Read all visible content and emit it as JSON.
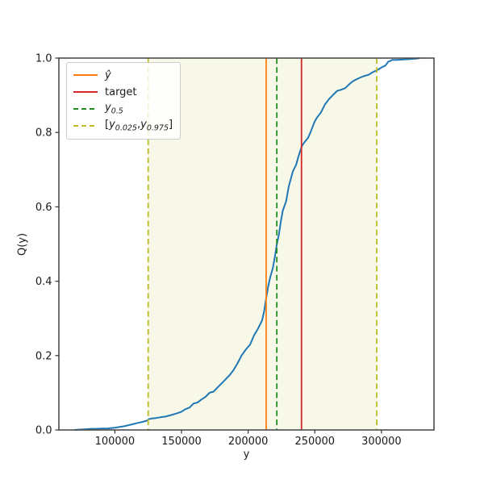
{
  "chart_data": {
    "type": "line",
    "title": "",
    "xlabel": "y",
    "ylabel": "Q(y)",
    "xlim": [
      58000,
      339400
    ],
    "ylim": [
      0,
      1
    ],
    "grid": false,
    "x_ticks": [
      100000,
      150000,
      200000,
      250000,
      300000
    ],
    "y_ticks": [
      {
        "v": 0,
        "label": "0.0"
      },
      {
        "v": 0.2,
        "label": "0.2"
      },
      {
        "v": 0.4,
        "label": "0.4"
      },
      {
        "v": 0.6,
        "label": "0.6"
      },
      {
        "v": 0.8,
        "label": "0.8"
      },
      {
        "v": 1.0,
        "label": "1.0"
      }
    ],
    "colors": {
      "curve": "#1f77b4",
      "yhat": "#ff7f0e",
      "target": "#d62728",
      "median": "#1e8c1e",
      "interval": "#bcbd22",
      "band": "#f8f8e9",
      "spine": "#4d4d4d",
      "text": "#1a1a1a"
    },
    "band": {
      "from": 125000,
      "to": 296500,
      "color": "#f8f8e9"
    },
    "vlines": [
      {
        "name": "yhat-line",
        "value": 213500,
        "color": "#ff7f0e",
        "dash": false
      },
      {
        "name": "target-line",
        "value": 240000,
        "color": "#d62728",
        "dash": false
      },
      {
        "name": "median-line",
        "value": 221500,
        "color": "#1e8c1e",
        "dash": true
      },
      {
        "name": "q025-line",
        "value": 125000,
        "color": "#bcbd22",
        "dash": true
      },
      {
        "name": "q975-line",
        "value": 296500,
        "color": "#bcbd22",
        "dash": true
      }
    ],
    "curve": {
      "name": "empirical-cdf",
      "color": "#1f77b4",
      "points": [
        [
          70000,
          0.0
        ],
        [
          74000,
          0.001
        ],
        [
          78000,
          0.002
        ],
        [
          82000,
          0.003
        ],
        [
          86000,
          0.003
        ],
        [
          90000,
          0.004
        ],
        [
          94000,
          0.004
        ],
        [
          97000,
          0.005
        ],
        [
          100000,
          0.006
        ],
        [
          103500,
          0.008
        ],
        [
          107000,
          0.01
        ],
        [
          110500,
          0.013
        ],
        [
          114000,
          0.016
        ],
        [
          117500,
          0.019
        ],
        [
          121000,
          0.022
        ],
        [
          124000,
          0.025
        ],
        [
          125500,
          0.029
        ],
        [
          128000,
          0.031
        ],
        [
          131000,
          0.032
        ],
        [
          134000,
          0.034
        ],
        [
          138000,
          0.036
        ],
        [
          142000,
          0.04
        ],
        [
          146000,
          0.044
        ],
        [
          150000,
          0.049
        ],
        [
          153000,
          0.056
        ],
        [
          156000,
          0.06
        ],
        [
          159000,
          0.071
        ],
        [
          162000,
          0.074
        ],
        [
          165000,
          0.082
        ],
        [
          168000,
          0.089
        ],
        [
          171000,
          0.1
        ],
        [
          174000,
          0.103
        ],
        [
          177000,
          0.114
        ],
        [
          180000,
          0.125
        ],
        [
          183000,
          0.136
        ],
        [
          186000,
          0.147
        ],
        [
          189000,
          0.161
        ],
        [
          192000,
          0.179
        ],
        [
          195000,
          0.2
        ],
        [
          198000,
          0.215
        ],
        [
          201500,
          0.23
        ],
        [
          204500,
          0.255
        ],
        [
          207500,
          0.273
        ],
        [
          210500,
          0.295
        ],
        [
          212000,
          0.32
        ],
        [
          213500,
          0.355
        ],
        [
          215000,
          0.385
        ],
        [
          216500,
          0.41
        ],
        [
          218500,
          0.435
        ],
        [
          220000,
          0.465
        ],
        [
          221500,
          0.5
        ],
        [
          223000,
          0.525
        ],
        [
          224500,
          0.56
        ],
        [
          226000,
          0.59
        ],
        [
          228500,
          0.615
        ],
        [
          230500,
          0.655
        ],
        [
          232000,
          0.675
        ],
        [
          233500,
          0.695
        ],
        [
          236000,
          0.713
        ],
        [
          237700,
          0.735
        ],
        [
          239000,
          0.75
        ],
        [
          240500,
          0.765
        ],
        [
          242500,
          0.775
        ],
        [
          245000,
          0.786
        ],
        [
          246700,
          0.8
        ],
        [
          249700,
          0.828
        ],
        [
          251600,
          0.84
        ],
        [
          254600,
          0.854
        ],
        [
          257700,
          0.876
        ],
        [
          260700,
          0.89
        ],
        [
          263700,
          0.901
        ],
        [
          266800,
          0.912
        ],
        [
          269800,
          0.915
        ],
        [
          272800,
          0.919
        ],
        [
          275900,
          0.93
        ],
        [
          278300,
          0.937
        ],
        [
          281300,
          0.943
        ],
        [
          284300,
          0.948
        ],
        [
          287300,
          0.952
        ],
        [
          290400,
          0.955
        ],
        [
          293400,
          0.962
        ],
        [
          297000,
          0.968
        ],
        [
          300100,
          0.975
        ],
        [
          303000,
          0.98
        ],
        [
          305000,
          0.99
        ],
        [
          307000,
          0.993
        ],
        [
          308000,
          0.995
        ],
        [
          312000,
          0.995
        ],
        [
          316000,
          0.996
        ],
        [
          320000,
          0.997
        ],
        [
          324000,
          0.998
        ],
        [
          327000,
          0.999
        ],
        [
          328500,
          1.0
        ]
      ]
    },
    "legend": {
      "position": "upper-left",
      "items": [
        {
          "color": "#ff7f0e",
          "dash": false,
          "label": [
            {
              "t": "ŷ",
              "i": true
            }
          ]
        },
        {
          "color": "#d62728",
          "dash": false,
          "label": [
            {
              "t": "target",
              "i": false
            }
          ]
        },
        {
          "color": "#1e8c1e",
          "dash": true,
          "label": [
            {
              "t": "y",
              "i": true
            },
            {
              "t": "0.5",
              "sub": true
            }
          ]
        },
        {
          "color": "#bcbd22",
          "dash": true,
          "label": [
            {
              "t": "[",
              "i": false
            },
            {
              "t": "y",
              "i": true
            },
            {
              "t": "0.025",
              "sub": true
            },
            {
              "t": ",",
              "i": false
            },
            {
              "t": "y",
              "i": true
            },
            {
              "t": "0.975",
              "sub": true
            },
            {
              "t": "]",
              "i": false
            }
          ]
        }
      ]
    }
  }
}
